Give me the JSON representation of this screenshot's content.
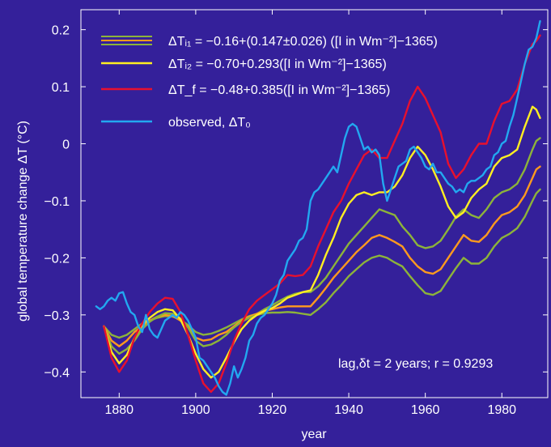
{
  "chart_data": {
    "type": "line",
    "title": "",
    "xlabel": "year",
    "ylabel": "global temperature change ΔT (°C)",
    "xlim": [
      1870,
      1992
    ],
    "ylim": [
      -0.445,
      0.235
    ],
    "x_ticks": [
      1880,
      1900,
      1920,
      1940,
      1960,
      1980
    ],
    "x_tick_labels": [
      "1880",
      "1900",
      "1920",
      "1940",
      "1960",
      "1980"
    ],
    "y_ticks": [
      0.2,
      0.1,
      0,
      -0.1,
      -0.2,
      -0.3,
      -0.4
    ],
    "y_tick_labels": [
      "0.2",
      "0.1",
      "0",
      "−0.1",
      "−0.2",
      "−0.3",
      "−0.4"
    ],
    "grid": false,
    "legend_position": "top-left",
    "legend": [
      {
        "text": "ΔTᵢ₁ = −0.16+(0.147±0.026) ([I in Wm⁻²]−1365)",
        "color": "#8db33a",
        "style": "triple"
      },
      {
        "text": "ΔTᵢ₂ = −0.70+0.293([I in Wm⁻²]−1365)",
        "color": "#ffee22",
        "style": "solid"
      },
      {
        "text": "ΔT_f = −0.48+0.385([I in Wm⁻²]−1365)",
        "color": "#e8102e",
        "style": "solid"
      },
      {
        "text": "observed, ΔT₀",
        "color": "#22a8f0",
        "style": "solid"
      }
    ],
    "annotation": "lag,δt = 2 years; r = 0.9293",
    "series": [
      {
        "name": "ΔTᵢ₁ (upper bound)",
        "color": "#8db33a",
        "x": [
          1876,
          1878,
          1880,
          1882,
          1884,
          1886,
          1888,
          1890,
          1892,
          1894,
          1896,
          1898,
          1900,
          1902,
          1904,
          1906,
          1908,
          1910,
          1912,
          1914,
          1916,
          1918,
          1920,
          1922,
          1924,
          1926,
          1928,
          1930,
          1932,
          1934,
          1936,
          1938,
          1940,
          1942,
          1944,
          1946,
          1948,
          1950,
          1952,
          1954,
          1956,
          1958,
          1960,
          1962,
          1964,
          1966,
          1968,
          1970,
          1972,
          1974,
          1976,
          1978,
          1980,
          1982,
          1984,
          1986,
          1988,
          1989,
          1990
        ],
        "y": [
          -0.32,
          -0.335,
          -0.34,
          -0.335,
          -0.325,
          -0.315,
          -0.31,
          -0.305,
          -0.302,
          -0.303,
          -0.308,
          -0.318,
          -0.33,
          -0.335,
          -0.333,
          -0.328,
          -0.322,
          -0.315,
          -0.308,
          -0.302,
          -0.298,
          -0.29,
          -0.283,
          -0.275,
          -0.268,
          -0.263,
          -0.26,
          -0.26,
          -0.25,
          -0.235,
          -0.215,
          -0.195,
          -0.175,
          -0.16,
          -0.145,
          -0.13,
          -0.115,
          -0.12,
          -0.125,
          -0.145,
          -0.16,
          -0.178,
          -0.183,
          -0.18,
          -0.17,
          -0.15,
          -0.128,
          -0.115,
          -0.125,
          -0.13,
          -0.115,
          -0.095,
          -0.085,
          -0.08,
          -0.07,
          -0.045,
          -0.01,
          0.005,
          0.01
        ]
      },
      {
        "name": "ΔTᵢ₁ (central)",
        "color": "#ff9a1e",
        "x": [
          1876,
          1878,
          1880,
          1882,
          1884,
          1886,
          1888,
          1890,
          1892,
          1894,
          1896,
          1898,
          1900,
          1902,
          1904,
          1906,
          1908,
          1910,
          1912,
          1914,
          1916,
          1918,
          1920,
          1922,
          1924,
          1926,
          1928,
          1930,
          1932,
          1934,
          1936,
          1938,
          1940,
          1942,
          1944,
          1946,
          1948,
          1950,
          1952,
          1954,
          1956,
          1958,
          1960,
          1962,
          1964,
          1966,
          1968,
          1970,
          1972,
          1974,
          1976,
          1978,
          1980,
          1982,
          1984,
          1986,
          1988,
          1989,
          1990
        ],
        "y": [
          -0.32,
          -0.345,
          -0.355,
          -0.345,
          -0.33,
          -0.32,
          -0.31,
          -0.303,
          -0.3,
          -0.302,
          -0.31,
          -0.32,
          -0.34,
          -0.345,
          -0.343,
          -0.335,
          -0.33,
          -0.32,
          -0.31,
          -0.303,
          -0.298,
          -0.293,
          -0.29,
          -0.287,
          -0.285,
          -0.285,
          -0.285,
          -0.285,
          -0.27,
          -0.253,
          -0.235,
          -0.22,
          -0.205,
          -0.19,
          -0.178,
          -0.165,
          -0.16,
          -0.165,
          -0.172,
          -0.18,
          -0.2,
          -0.215,
          -0.225,
          -0.228,
          -0.22,
          -0.2,
          -0.18,
          -0.16,
          -0.17,
          -0.172,
          -0.16,
          -0.14,
          -0.125,
          -0.12,
          -0.11,
          -0.09,
          -0.06,
          -0.045,
          -0.04
        ]
      },
      {
        "name": "ΔTᵢ₁ (lower bound)",
        "color": "#8db33a",
        "x": [
          1876,
          1878,
          1880,
          1882,
          1884,
          1886,
          1888,
          1890,
          1892,
          1894,
          1896,
          1898,
          1900,
          1902,
          1904,
          1906,
          1908,
          1910,
          1912,
          1914,
          1916,
          1918,
          1920,
          1922,
          1924,
          1926,
          1928,
          1930,
          1932,
          1934,
          1936,
          1938,
          1940,
          1942,
          1944,
          1946,
          1948,
          1950,
          1952,
          1954,
          1956,
          1958,
          1960,
          1962,
          1964,
          1966,
          1968,
          1970,
          1972,
          1974,
          1976,
          1978,
          1980,
          1982,
          1984,
          1986,
          1988,
          1989,
          1990
        ],
        "y": [
          -0.32,
          -0.355,
          -0.368,
          -0.36,
          -0.345,
          -0.325,
          -0.312,
          -0.303,
          -0.297,
          -0.298,
          -0.306,
          -0.322,
          -0.345,
          -0.355,
          -0.352,
          -0.345,
          -0.335,
          -0.322,
          -0.312,
          -0.305,
          -0.3,
          -0.297,
          -0.296,
          -0.296,
          -0.295,
          -0.296,
          -0.298,
          -0.3,
          -0.29,
          -0.278,
          -0.262,
          -0.248,
          -0.232,
          -0.22,
          -0.208,
          -0.2,
          -0.196,
          -0.2,
          -0.208,
          -0.215,
          -0.232,
          -0.248,
          -0.262,
          -0.265,
          -0.258,
          -0.238,
          -0.218,
          -0.2,
          -0.21,
          -0.21,
          -0.2,
          -0.18,
          -0.165,
          -0.158,
          -0.148,
          -0.128,
          -0.1,
          -0.087,
          -0.08
        ]
      },
      {
        "name": "ΔTᵢ₂",
        "color": "#ffee22",
        "x": [
          1876,
          1878,
          1880,
          1882,
          1884,
          1886,
          1888,
          1890,
          1892,
          1894,
          1896,
          1898,
          1900,
          1902,
          1904,
          1906,
          1908,
          1910,
          1912,
          1914,
          1916,
          1918,
          1920,
          1922,
          1924,
          1926,
          1928,
          1930,
          1932,
          1934,
          1936,
          1938,
          1940,
          1942,
          1944,
          1946,
          1948,
          1950,
          1952,
          1954,
          1956,
          1958,
          1960,
          1962,
          1964,
          1966,
          1968,
          1970,
          1972,
          1974,
          1976,
          1978,
          1980,
          1982,
          1984,
          1986,
          1988,
          1989,
          1990
        ],
        "y": [
          -0.32,
          -0.365,
          -0.385,
          -0.37,
          -0.34,
          -0.318,
          -0.305,
          -0.295,
          -0.29,
          -0.292,
          -0.308,
          -0.335,
          -0.368,
          -0.395,
          -0.41,
          -0.4,
          -0.375,
          -0.348,
          -0.325,
          -0.31,
          -0.3,
          -0.293,
          -0.288,
          -0.28,
          -0.27,
          -0.265,
          -0.26,
          -0.257,
          -0.23,
          -0.195,
          -0.165,
          -0.13,
          -0.105,
          -0.09,
          -0.085,
          -0.09,
          -0.085,
          -0.085,
          -0.075,
          -0.055,
          -0.025,
          -0.005,
          -0.02,
          -0.045,
          -0.075,
          -0.11,
          -0.13,
          -0.12,
          -0.095,
          -0.08,
          -0.07,
          -0.04,
          -0.025,
          -0.02,
          -0.01,
          0.03,
          0.065,
          0.06,
          0.045
        ]
      },
      {
        "name": "ΔT_f",
        "color": "#e8102e",
        "x": [
          1876,
          1878,
          1880,
          1882,
          1884,
          1886,
          1888,
          1890,
          1892,
          1894,
          1896,
          1898,
          1900,
          1902,
          1904,
          1906,
          1908,
          1910,
          1912,
          1914,
          1916,
          1918,
          1920,
          1922,
          1924,
          1926,
          1928,
          1930,
          1932,
          1934,
          1936,
          1938,
          1940,
          1942,
          1944,
          1946,
          1948,
          1950,
          1952,
          1954,
          1956,
          1958,
          1960,
          1962,
          1964,
          1966,
          1968,
          1970,
          1972,
          1974,
          1976,
          1978,
          1980,
          1982,
          1984,
          1986,
          1988,
          1989,
          1990
        ],
        "y": [
          -0.32,
          -0.375,
          -0.4,
          -0.38,
          -0.34,
          -0.315,
          -0.295,
          -0.28,
          -0.27,
          -0.272,
          -0.295,
          -0.335,
          -0.38,
          -0.42,
          -0.435,
          -0.42,
          -0.385,
          -0.345,
          -0.315,
          -0.29,
          -0.275,
          -0.265,
          -0.255,
          -0.245,
          -0.23,
          -0.232,
          -0.23,
          -0.215,
          -0.18,
          -0.15,
          -0.12,
          -0.1,
          -0.07,
          -0.045,
          -0.02,
          -0.01,
          -0.025,
          -0.025,
          0.005,
          0.035,
          0.075,
          0.1,
          0.08,
          0.05,
          0.02,
          -0.035,
          -0.06,
          -0.045,
          -0.02,
          0.0,
          0.0,
          0.04,
          0.07,
          0.075,
          0.095,
          0.14,
          0.175,
          0.18,
          0.19
        ]
      },
      {
        "name": "observed, ΔT₀",
        "color": "#22a8f0",
        "x": [
          1874,
          1875,
          1876,
          1877,
          1878,
          1879,
          1880,
          1881,
          1882,
          1883,
          1884,
          1885,
          1886,
          1887,
          1888,
          1889,
          1890,
          1891,
          1892,
          1893,
          1894,
          1895,
          1896,
          1897,
          1898,
          1899,
          1900,
          1901,
          1902,
          1903,
          1904,
          1905,
          1906,
          1907,
          1908,
          1909,
          1910,
          1911,
          1912,
          1913,
          1914,
          1915,
          1916,
          1917,
          1918,
          1919,
          1920,
          1921,
          1922,
          1923,
          1924,
          1925,
          1926,
          1927,
          1928,
          1929,
          1930,
          1931,
          1932,
          1933,
          1934,
          1935,
          1936,
          1937,
          1938,
          1939,
          1940,
          1941,
          1942,
          1943,
          1944,
          1945,
          1946,
          1947,
          1948,
          1949,
          1950,
          1951,
          1952,
          1953,
          1954,
          1955,
          1956,
          1957,
          1958,
          1959,
          1960,
          1961,
          1962,
          1963,
          1964,
          1965,
          1966,
          1967,
          1968,
          1969,
          1970,
          1971,
          1972,
          1973,
          1974,
          1975,
          1976,
          1977,
          1978,
          1979,
          1980,
          1981,
          1982,
          1983,
          1984,
          1985,
          1986,
          1987,
          1988,
          1989,
          1990
        ],
        "y": [
          -0.285,
          -0.29,
          -0.285,
          -0.275,
          -0.27,
          -0.275,
          -0.262,
          -0.26,
          -0.28,
          -0.295,
          -0.3,
          -0.32,
          -0.33,
          -0.3,
          -0.325,
          -0.335,
          -0.34,
          -0.325,
          -0.31,
          -0.305,
          -0.3,
          -0.305,
          -0.295,
          -0.3,
          -0.31,
          -0.325,
          -0.34,
          -0.375,
          -0.38,
          -0.39,
          -0.4,
          -0.41,
          -0.425,
          -0.435,
          -0.44,
          -0.42,
          -0.39,
          -0.41,
          -0.395,
          -0.375,
          -0.345,
          -0.335,
          -0.315,
          -0.305,
          -0.3,
          -0.29,
          -0.28,
          -0.265,
          -0.24,
          -0.23,
          -0.205,
          -0.195,
          -0.185,
          -0.17,
          -0.165,
          -0.15,
          -0.1,
          -0.085,
          -0.08,
          -0.07,
          -0.06,
          -0.05,
          -0.04,
          -0.05,
          -0.02,
          0.01,
          0.03,
          0.035,
          0.03,
          0.01,
          -0.01,
          -0.005,
          -0.015,
          -0.01,
          -0.02,
          -0.07,
          -0.1,
          -0.08,
          -0.06,
          -0.04,
          -0.035,
          -0.03,
          -0.01,
          -0.005,
          -0.015,
          -0.025,
          -0.04,
          -0.045,
          -0.035,
          -0.05,
          -0.05,
          -0.06,
          -0.07,
          -0.075,
          -0.085,
          -0.08,
          -0.085,
          -0.07,
          -0.065,
          -0.065,
          -0.06,
          -0.055,
          -0.045,
          -0.04,
          -0.02,
          -0.015,
          0.0,
          0.005,
          0.03,
          0.05,
          0.08,
          0.11,
          0.14,
          0.165,
          0.17,
          0.185,
          0.215
        ]
      }
    ]
  }
}
